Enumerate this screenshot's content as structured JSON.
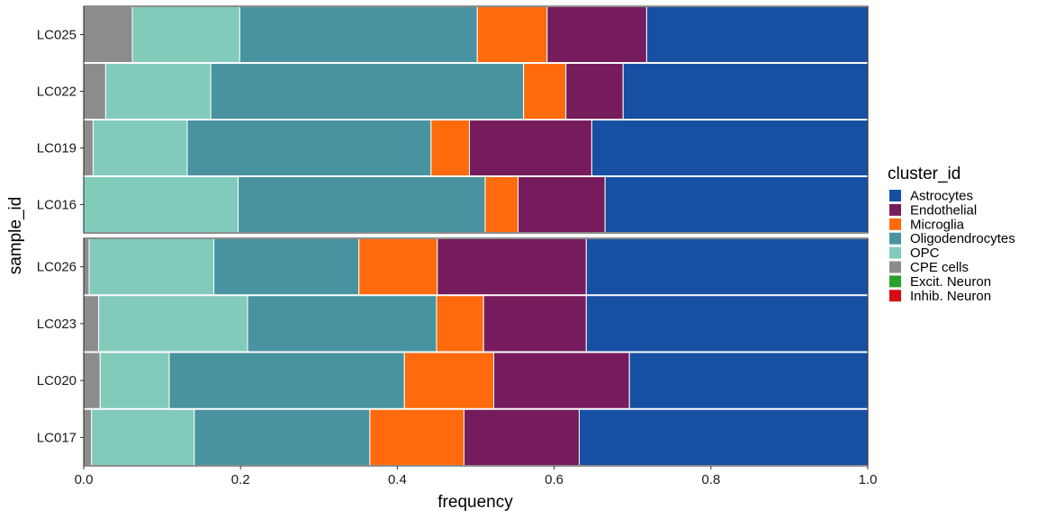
{
  "chart_data": {
    "type": "bar",
    "orientation": "horizontal",
    "stacked": true,
    "xlabel": "frequency",
    "ylabel": "sample_id",
    "xlim": [
      0,
      1
    ],
    "xticks": [
      "0.0",
      "0.2",
      "0.4",
      "0.6",
      "0.8",
      "1.0"
    ],
    "legend": {
      "title": "cluster_id",
      "position": "right",
      "entries": [
        {
          "name": "Astrocytes",
          "color": "#1750a3"
        },
        {
          "name": "Endothelial",
          "color": "#761c5c"
        },
        {
          "name": "Microglia",
          "color": "#ff6a0d"
        },
        {
          "name": "Oligodendrocytes",
          "color": "#4993a1"
        },
        {
          "name": "OPC",
          "color": "#82cbbb"
        },
        {
          "name": "CPE cells",
          "color": "#8c8c8c"
        },
        {
          "name": "Excit. Neuron",
          "color": "#2ca02c"
        },
        {
          "name": "Inhib. Neuron",
          "color": "#d60b14"
        }
      ]
    },
    "stack_order": [
      "CPE cells",
      "OPC",
      "Oligodendrocytes",
      "Microglia",
      "Endothelial",
      "Astrocytes",
      "Excit. Neuron",
      "Inhib. Neuron"
    ],
    "panels": [
      {
        "samples": [
          {
            "id": "LC025",
            "values": {
              "CPE cells": 0.062,
              "OPC": 0.137,
              "Oligodendrocytes": 0.303,
              "Microglia": 0.089,
              "Endothelial": 0.127,
              "Astrocytes": 0.282,
              "Excit. Neuron": 0,
              "Inhib. Neuron": 0
            }
          },
          {
            "id": "LC022",
            "values": {
              "CPE cells": 0.028,
              "OPC": 0.134,
              "Oligodendrocytes": 0.399,
              "Microglia": 0.054,
              "Endothelial": 0.073,
              "Astrocytes": 0.312,
              "Excit. Neuron": 0,
              "Inhib. Neuron": 0
            }
          },
          {
            "id": "LC019",
            "values": {
              "CPE cells": 0.012,
              "OPC": 0.12,
              "Oligodendrocytes": 0.311,
              "Microglia": 0.049,
              "Endothelial": 0.156,
              "Astrocytes": 0.352,
              "Excit. Neuron": 0,
              "Inhib. Neuron": 0
            }
          },
          {
            "id": "LC016",
            "values": {
              "CPE cells": 0.0,
              "OPC": 0.197,
              "Oligodendrocytes": 0.315,
              "Microglia": 0.042,
              "Endothelial": 0.111,
              "Astrocytes": 0.335,
              "Excit. Neuron": 0,
              "Inhib. Neuron": 0
            }
          }
        ]
      },
      {
        "samples": [
          {
            "id": "LC026",
            "values": {
              "CPE cells": 0.007,
              "OPC": 0.159,
              "Oligodendrocytes": 0.185,
              "Microglia": 0.1,
              "Endothelial": 0.19,
              "Astrocytes": 0.359,
              "Excit. Neuron": 0,
              "Inhib. Neuron": 0
            }
          },
          {
            "id": "LC023",
            "values": {
              "CPE cells": 0.019,
              "OPC": 0.19,
              "Oligodendrocytes": 0.241,
              "Microglia": 0.06,
              "Endothelial": 0.131,
              "Astrocytes": 0.359,
              "Excit. Neuron": 0,
              "Inhib. Neuron": 0
            }
          },
          {
            "id": "LC020",
            "values": {
              "CPE cells": 0.021,
              "OPC": 0.088,
              "Oligodendrocytes": 0.3,
              "Microglia": 0.114,
              "Endothelial": 0.173,
              "Astrocytes": 0.304,
              "Excit. Neuron": 0,
              "Inhib. Neuron": 0
            }
          },
          {
            "id": "LC017",
            "values": {
              "CPE cells": 0.01,
              "OPC": 0.131,
              "Oligodendrocytes": 0.224,
              "Microglia": 0.12,
              "Endothelial": 0.147,
              "Astrocytes": 0.368,
              "Excit. Neuron": 0,
              "Inhib. Neuron": 0
            }
          }
        ]
      }
    ]
  }
}
